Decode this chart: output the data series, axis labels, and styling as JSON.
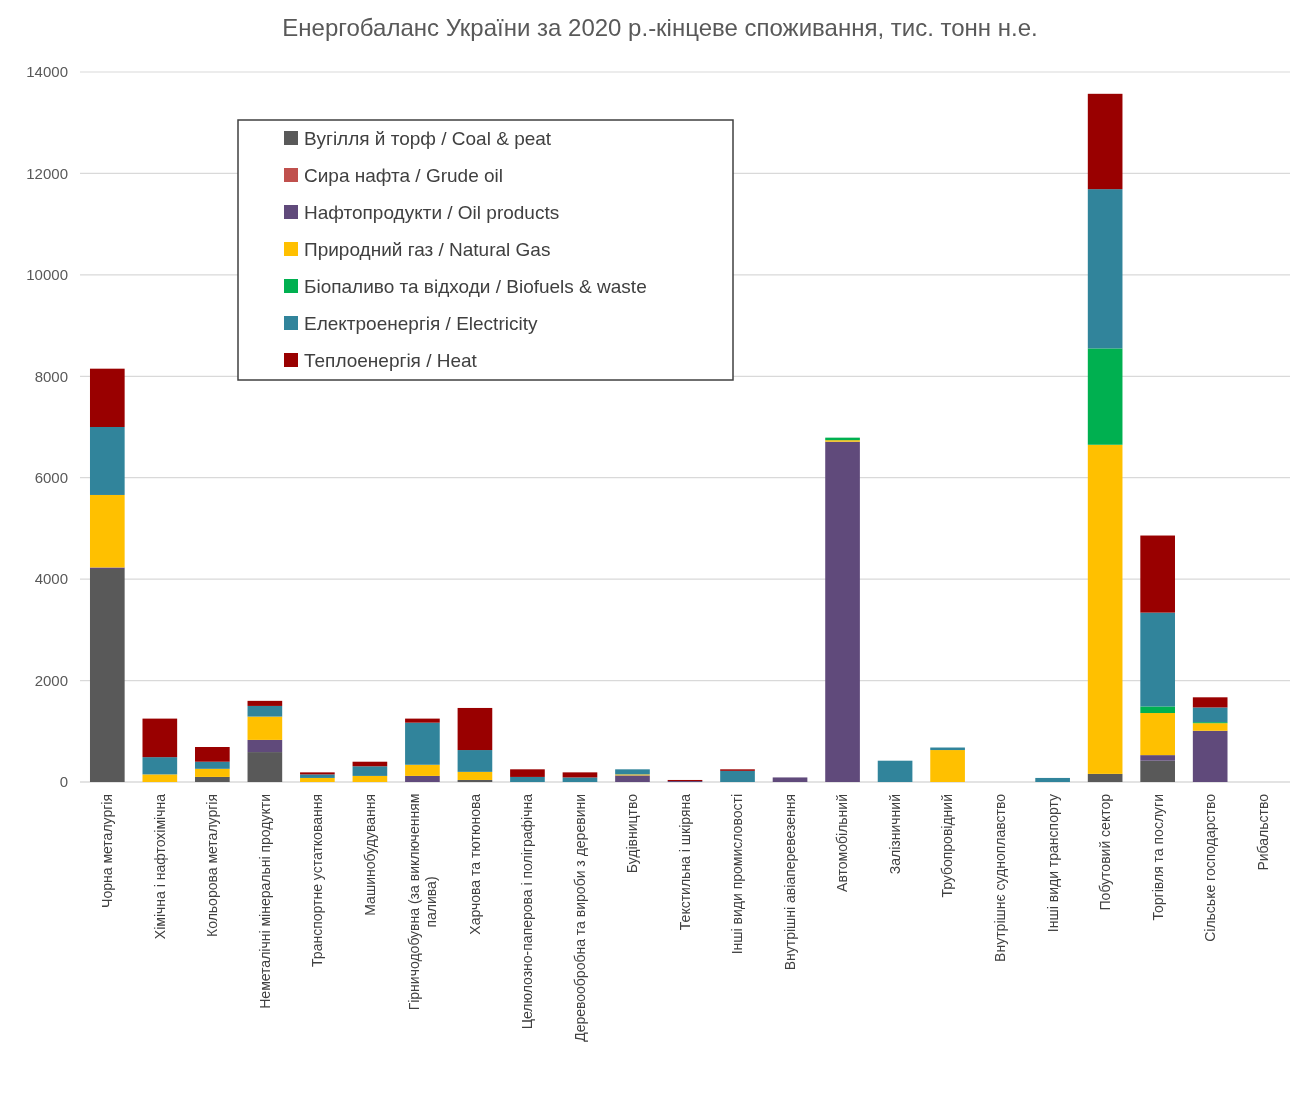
{
  "chart_data": {
    "type": "bar",
    "title": "Енергобаланс України за 2020 р.-кінцеве споживання,  тис. тонн н.е.",
    "categories": [
      "Чорна  металургія",
      "Хімічна і нафтохімічна",
      "Кольорова металургія",
      "Неметалічні мінеральні  продукти",
      "Транспортне  устатковання",
      "Машинобудування",
      "Гірничодобувна (за виключенням палива)",
      "Харчова та тютюнова",
      "Целюлозно-паперова і поліграфічна",
      "Деревообробна та вироби з деревини",
      "Будівництво",
      "Текстильна і шкіряна",
      "Інші види промисловості",
      "Внутрішні авіаперевезення",
      "Автомобільний",
      "Залізничний",
      "Трубопровідний",
      "Внутрішнє судноплавство",
      "Інші види транспорту",
      "Побутовий сектор",
      "Торгівля та  послуги",
      "Сільське господарство",
      "Рибальство"
    ],
    "series": [
      {
        "name": "Вугілля й торф / Coal & peat",
        "color": "#595959",
        "values": [
          4200,
          0,
          100,
          590,
          0,
          0,
          0,
          40,
          0,
          0,
          0,
          0,
          0,
          0,
          0,
          0,
          0,
          0,
          0,
          160,
          420,
          0,
          0
        ]
      },
      {
        "name": "Сира нафта / Grude oil",
        "color": "#c0504d",
        "values": [
          0,
          0,
          0,
          0,
          0,
          0,
          0,
          0,
          0,
          0,
          0,
          0,
          0,
          0,
          0,
          0,
          0,
          0,
          0,
          0,
          0,
          0,
          0
        ]
      },
      {
        "name": "Нафтопродукти / Oil products",
        "color": "#604a7b",
        "values": [
          30,
          0,
          0,
          240,
          0,
          0,
          120,
          0,
          0,
          0,
          130,
          20,
          0,
          90,
          6710,
          0,
          0,
          0,
          0,
          0,
          110,
          1010,
          0
        ]
      },
      {
        "name": "Природний газ / Natural Gas",
        "color": "#ffc000",
        "values": [
          1430,
          150,
          160,
          460,
          80,
          120,
          220,
          160,
          0,
          0,
          20,
          0,
          0,
          0,
          30,
          0,
          630,
          0,
          0,
          6490,
          830,
          150,
          0
        ]
      },
      {
        "name": "Біопаливо та відходи / Biofuels & waste",
        "color": "#00b050",
        "values": [
          0,
          0,
          0,
          0,
          0,
          0,
          0,
          0,
          0,
          0,
          0,
          0,
          0,
          0,
          50,
          0,
          0,
          0,
          0,
          1900,
          130,
          20,
          0
        ]
      },
      {
        "name": "Електроенергія / Electricity",
        "color": "#31849b",
        "values": [
          1340,
          340,
          140,
          210,
          70,
          190,
          830,
          430,
          100,
          90,
          100,
          0,
          220,
          0,
          0,
          420,
          50,
          0,
          80,
          3140,
          1850,
          290,
          0
        ]
      },
      {
        "name": "Теплоенергія / Heat",
        "color": "#990000",
        "values": [
          1150,
          760,
          290,
          100,
          40,
          90,
          80,
          830,
          150,
          100,
          0,
          20,
          30,
          0,
          0,
          0,
          0,
          0,
          0,
          1880,
          1520,
          200,
          0
        ]
      }
    ],
    "stacked": true,
    "ylim": [
      0,
      14000
    ],
    "yticks": [
      0,
      2000,
      4000,
      6000,
      8000,
      10000,
      12000,
      14000
    ],
    "grid": "y",
    "legend": "top left"
  }
}
